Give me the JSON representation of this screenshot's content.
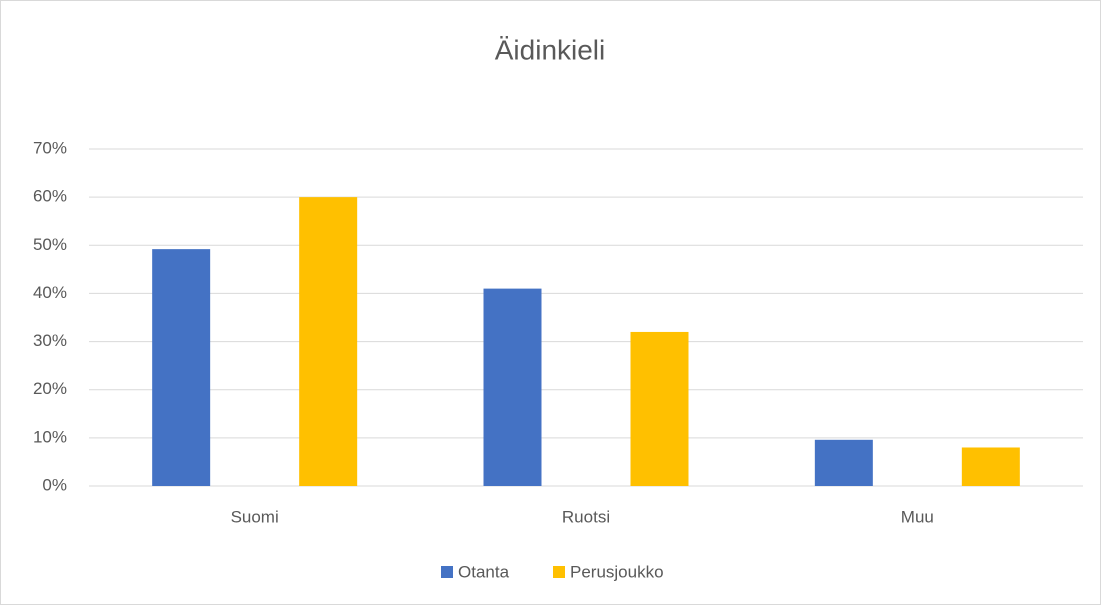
{
  "chart_data": {
    "type": "bar",
    "title": "Äidinkieli",
    "categories": [
      "Suomi",
      "Ruotsi",
      "Muu"
    ],
    "series": [
      {
        "name": "Otanta",
        "color": "#4472c4",
        "values": [
          49.2,
          41,
          9.6
        ]
      },
      {
        "name": "Perusjoukko",
        "color": "#ffc000",
        "values": [
          60,
          32,
          8
        ]
      }
    ],
    "ylim": [
      0,
      70
    ],
    "yticks": [
      {
        "value": 0,
        "label": "0%"
      },
      {
        "value": 10,
        "label": "10%"
      },
      {
        "value": 20,
        "label": "20%"
      },
      {
        "value": 30,
        "label": "30%"
      },
      {
        "value": 40,
        "label": "40%"
      },
      {
        "value": 50,
        "label": "50%"
      },
      {
        "value": 60,
        "label": "60%"
      },
      {
        "value": 70,
        "label": "70%"
      }
    ],
    "grid": true,
    "legend": "bottom"
  }
}
